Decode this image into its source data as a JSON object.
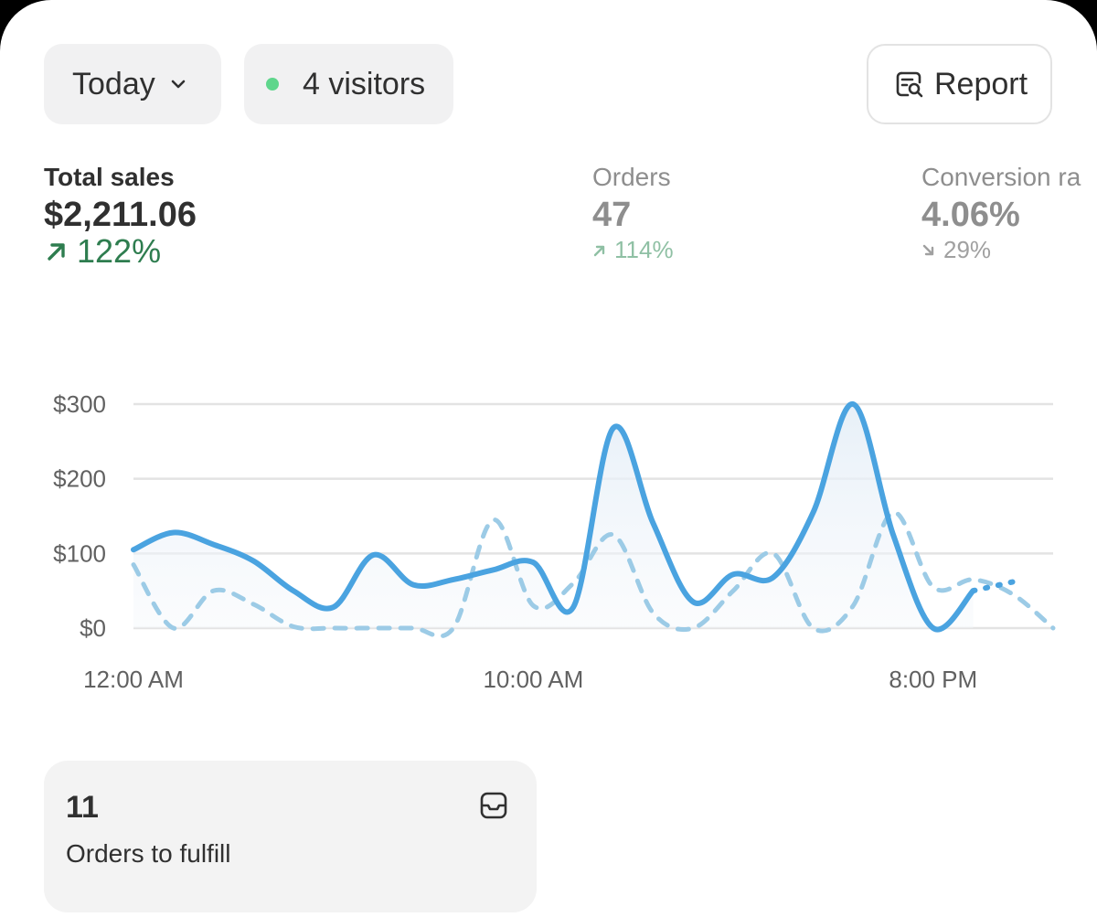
{
  "toolbar": {
    "date_filter_label": "Today",
    "visitors_label": "4 visitors",
    "report_label": "Report"
  },
  "metrics": [
    {
      "label": "Total sales",
      "value": "$2,211.06",
      "delta": "122%",
      "direction": "up"
    },
    {
      "label": "Orders",
      "value": "47",
      "delta": "114%",
      "direction": "up"
    },
    {
      "label": "Conversion ra",
      "value": "4.06%",
      "delta": "29%",
      "direction": "down"
    }
  ],
  "colors": {
    "accent_line": "#4aa3e0",
    "comparison_line": "#9ccbe6",
    "positive": "#2e7d4f",
    "live_dot": "#5fd68c"
  },
  "chart_data": {
    "type": "line",
    "y_tick_labels": [
      "$0",
      "$100",
      "$200",
      "$300"
    ],
    "x_tick_labels": [
      "12:00 AM",
      "10:00 AM",
      "8:00 PM"
    ],
    "ylim": [
      0,
      300
    ],
    "x_hours": [
      0,
      23
    ],
    "grid": true,
    "series": [
      {
        "style": "solid",
        "x": [
          0,
          1,
          2,
          3,
          4,
          5,
          6,
          7,
          8,
          9,
          10,
          11,
          12,
          13,
          14,
          15,
          16,
          17,
          18,
          19,
          20,
          21
        ],
        "values": [
          105,
          128,
          112,
          90,
          50,
          28,
          98,
          58,
          65,
          78,
          88,
          28,
          268,
          140,
          35,
          72,
          68,
          155,
          300,
          125,
          0,
          50
        ]
      },
      {
        "style": "solid-dotted-tail",
        "x": [
          21,
          22
        ],
        "values": [
          50,
          62
        ]
      },
      {
        "style": "dashed",
        "x": [
          0,
          1,
          2,
          3,
          4,
          5,
          6,
          7,
          8,
          9,
          10,
          11,
          12,
          13,
          14,
          15,
          16,
          17,
          18,
          19,
          20,
          21,
          22,
          23
        ],
        "values": [
          85,
          0,
          50,
          32,
          2,
          0,
          0,
          0,
          0,
          145,
          30,
          60,
          125,
          20,
          0,
          50,
          100,
          0,
          30,
          155,
          55,
          65,
          45,
          0
        ]
      }
    ]
  },
  "fulfill_card": {
    "count": "11",
    "label": "Orders to fulfill"
  }
}
